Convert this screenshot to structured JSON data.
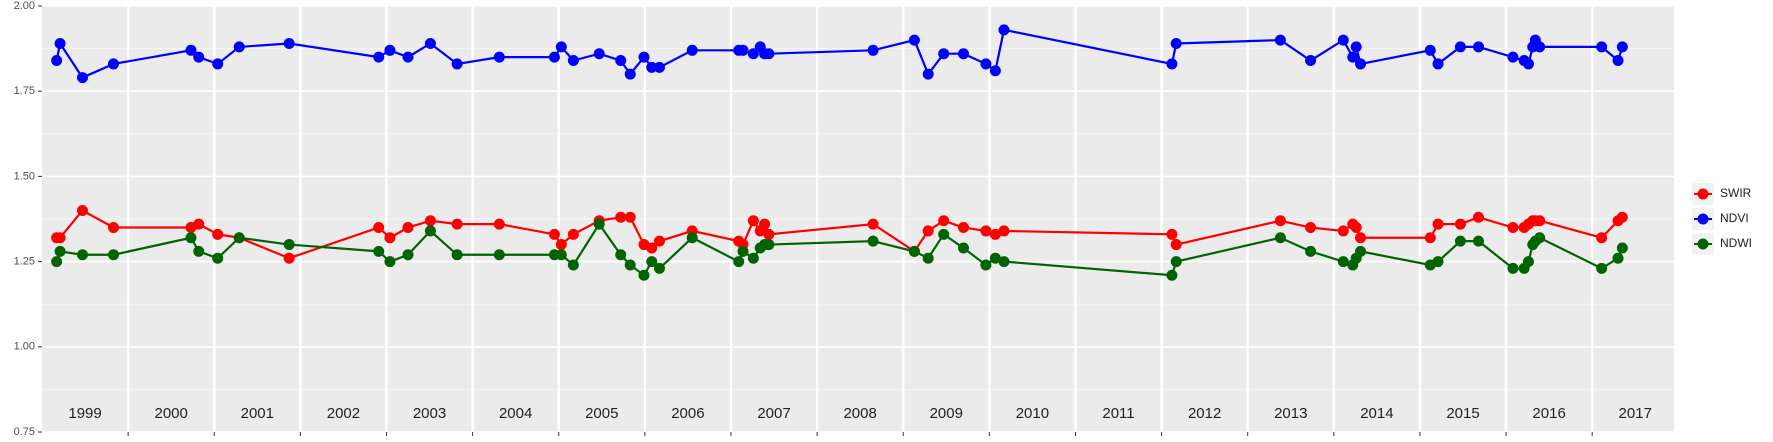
{
  "chart_data": {
    "type": "line",
    "x": [
      1999.17,
      1999.21,
      1999.47,
      1999.83,
      2000.73,
      2000.82,
      2001.04,
      2001.29,
      2001.87,
      2002.91,
      2003.04,
      2003.25,
      2003.51,
      2003.82,
      2004.31,
      2004.95,
      2005.03,
      2005.17,
      2005.47,
      2005.72,
      2005.83,
      2005.99,
      2006.08,
      2006.17,
      2006.55,
      2007.09,
      2007.14,
      2007.26,
      2007.34,
      2007.39,
      2007.44,
      2008.65,
      2009.13,
      2009.29,
      2009.47,
      2009.7,
      2009.96,
      2010.07,
      2010.17,
      2012.12,
      2012.17,
      2013.38,
      2013.73,
      2014.11,
      2014.22,
      2014.26,
      2014.31,
      2015.12,
      2015.21,
      2015.47,
      2015.68,
      2016.08,
      2016.21,
      2016.26,
      2016.31,
      2016.34,
      2016.39,
      2017.11,
      2017.3,
      2017.35
    ],
    "series": [
      {
        "name": "SWIR",
        "color": "#ff0000",
        "values": [
          1.32,
          1.32,
          1.4,
          1.35,
          1.35,
          1.36,
          1.33,
          1.32,
          1.26,
          1.35,
          1.32,
          1.35,
          1.37,
          1.36,
          1.36,
          1.33,
          1.3,
          1.33,
          1.37,
          1.38,
          1.38,
          1.3,
          1.29,
          1.31,
          1.34,
          1.31,
          1.3,
          1.37,
          1.34,
          1.36,
          1.33,
          1.36,
          1.28,
          1.34,
          1.37,
          1.35,
          1.34,
          1.33,
          1.34,
          1.33,
          1.3,
          1.37,
          1.35,
          1.34,
          1.36,
          1.35,
          1.32,
          1.32,
          1.36,
          1.36,
          1.38,
          1.35,
          1.35,
          1.36,
          1.37,
          1.37,
          1.37,
          1.32,
          1.37,
          1.38
        ]
      },
      {
        "name": "NDVI",
        "color": "#0000ff",
        "values": [
          1.84,
          1.89,
          1.79,
          1.83,
          1.87,
          1.85,
          1.83,
          1.88,
          1.89,
          1.85,
          1.87,
          1.85,
          1.89,
          1.83,
          1.85,
          1.85,
          1.88,
          1.84,
          1.86,
          1.84,
          1.8,
          1.85,
          1.82,
          1.82,
          1.87,
          1.87,
          1.87,
          1.86,
          1.88,
          1.86,
          1.86,
          1.87,
          1.9,
          1.8,
          1.86,
          1.86,
          1.83,
          1.81,
          1.93,
          1.83,
          1.89,
          1.9,
          1.84,
          1.9,
          1.85,
          1.88,
          1.83,
          1.87,
          1.83,
          1.88,
          1.88,
          1.85,
          1.84,
          1.83,
          1.88,
          1.9,
          1.88,
          1.88,
          1.84,
          1.88
        ]
      },
      {
        "name": "NDWI",
        "color": "#006400",
        "values": [
          1.25,
          1.28,
          1.27,
          1.27,
          1.32,
          1.28,
          1.26,
          1.32,
          1.3,
          1.28,
          1.25,
          1.27,
          1.34,
          1.27,
          1.27,
          1.27,
          1.27,
          1.24,
          1.36,
          1.27,
          1.24,
          1.21,
          1.25,
          1.23,
          1.32,
          1.25,
          1.28,
          1.26,
          1.29,
          1.3,
          1.3,
          1.31,
          1.28,
          1.26,
          1.33,
          1.29,
          1.24,
          1.26,
          1.25,
          1.21,
          1.25,
          1.32,
          1.28,
          1.25,
          1.24,
          1.26,
          1.28,
          1.24,
          1.25,
          1.31,
          1.31,
          1.23,
          1.23,
          1.25,
          1.3,
          1.31,
          1.32,
          1.23,
          1.26,
          1.29
        ]
      }
    ],
    "xlim": [
      1999.0,
      2017.95
    ],
    "xticks": [
      {
        "value": 1999.5,
        "label": "1999"
      },
      {
        "value": 2000.5,
        "label": "2000"
      },
      {
        "value": 2001.5,
        "label": "2001"
      },
      {
        "value": 2002.5,
        "label": "2002"
      },
      {
        "value": 2003.5,
        "label": "2003"
      },
      {
        "value": 2004.5,
        "label": "2004"
      },
      {
        "value": 2005.5,
        "label": "2005"
      },
      {
        "value": 2006.5,
        "label": "2006"
      },
      {
        "value": 2007.5,
        "label": "2007"
      },
      {
        "value": 2008.5,
        "label": "2008"
      },
      {
        "value": 2009.5,
        "label": "2009"
      },
      {
        "value": 2010.5,
        "label": "2010"
      },
      {
        "value": 2011.5,
        "label": "2011"
      },
      {
        "value": 2012.5,
        "label": "2012"
      },
      {
        "value": 2013.5,
        "label": "2013"
      },
      {
        "value": 2014.5,
        "label": "2014"
      },
      {
        "value": 2015.5,
        "label": "2015"
      },
      {
        "value": 2016.5,
        "label": "2016"
      },
      {
        "value": 2017.5,
        "label": "2017"
      }
    ],
    "xgrid": [
      2000,
      2001,
      2002,
      2003,
      2004,
      2005,
      2006,
      2007,
      2008,
      2009,
      2010,
      2011,
      2012,
      2013,
      2014,
      2015,
      2016,
      2017
    ],
    "ylim": [
      0.75,
      2.0
    ],
    "yticks": [
      0.75,
      {
        "value": 1.0,
        "label": "1.00"
      },
      {
        "value": 1.25,
        "label": "1.25"
      },
      {
        "value": 1.5,
        "label": "1.50"
      },
      1.75,
      {
        "value": 2.0,
        "label": "2.00"
      }
    ],
    "grid": true,
    "legend": "right"
  }
}
